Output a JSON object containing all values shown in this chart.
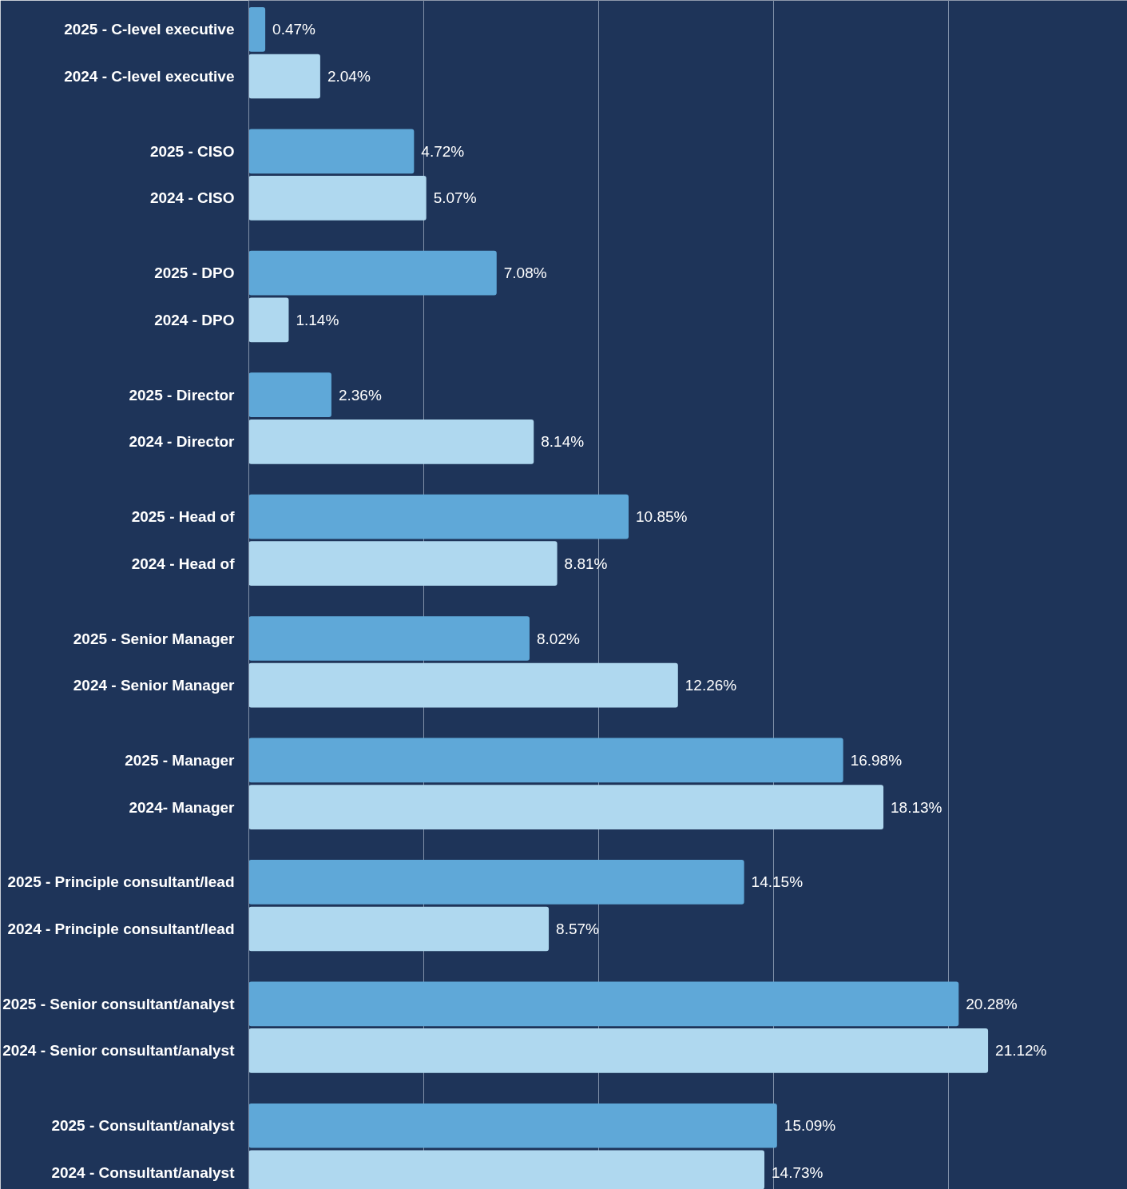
{
  "chart_data": {
    "type": "bar",
    "orientation": "horizontal",
    "categories": [
      "2025 - C-level executive",
      "2024 - C-level executive",
      "2025 - CISO",
      "2024 - CISO",
      "2025 - DPO",
      "2024 - DPO",
      "2025 - Director",
      "2024 - Director",
      "2025 - Head of",
      "2024 - Head of",
      "2025 - Senior Manager",
      "2024 - Senior Manager",
      "2025 - Manager",
      "2024- Manager",
      "2025 - Principle consultant/lead",
      "2024 - Principle consultant/lead",
      "2025 - Senior consultant/analyst",
      "2024 - Senior consultant/analyst",
      "2025 - Consultant/analyst",
      "2024 - Consultant/analyst"
    ],
    "values": [
      0.47,
      2.04,
      4.72,
      5.07,
      7.08,
      1.14,
      2.36,
      8.14,
      10.85,
      8.81,
      8.02,
      12.26,
      16.98,
      18.13,
      14.15,
      8.57,
      20.28,
      21.12,
      15.09,
      14.73
    ],
    "value_labels": [
      "0.47%",
      "2.04%",
      "4.72%",
      "5.07%",
      "7.08%",
      "1.14%",
      "2.36%",
      "8.14%",
      "10.85%",
      "8.81%",
      "8.02%",
      "12.26%",
      "16.98%",
      "18.13%",
      "14.15%",
      "8.57%",
      "20.28%",
      "21.12%",
      "15.09%",
      "14.73%"
    ],
    "colors": [
      "#5fa8d8",
      "#afd8ef",
      "#5fa8d8",
      "#afd8ef",
      "#5fa8d8",
      "#afd8ef",
      "#5fa8d8",
      "#afd8ef",
      "#5fa8d8",
      "#afd8ef",
      "#5fa8d8",
      "#afd8ef",
      "#5fa8d8",
      "#afd8ef",
      "#5fa8d8",
      "#afd8ef",
      "#5fa8d8",
      "#afd8ef",
      "#5fa8d8",
      "#afd8ef"
    ],
    "xlim": [
      0,
      25.1
    ],
    "xticks": [
      {
        "value": 5,
        "label": null
      },
      {
        "value": 10,
        "label": null
      },
      {
        "value": 15,
        "label": null
      },
      {
        "value": 20,
        "label": null
      }
    ],
    "grid": "x",
    "tick_labels": false
  }
}
